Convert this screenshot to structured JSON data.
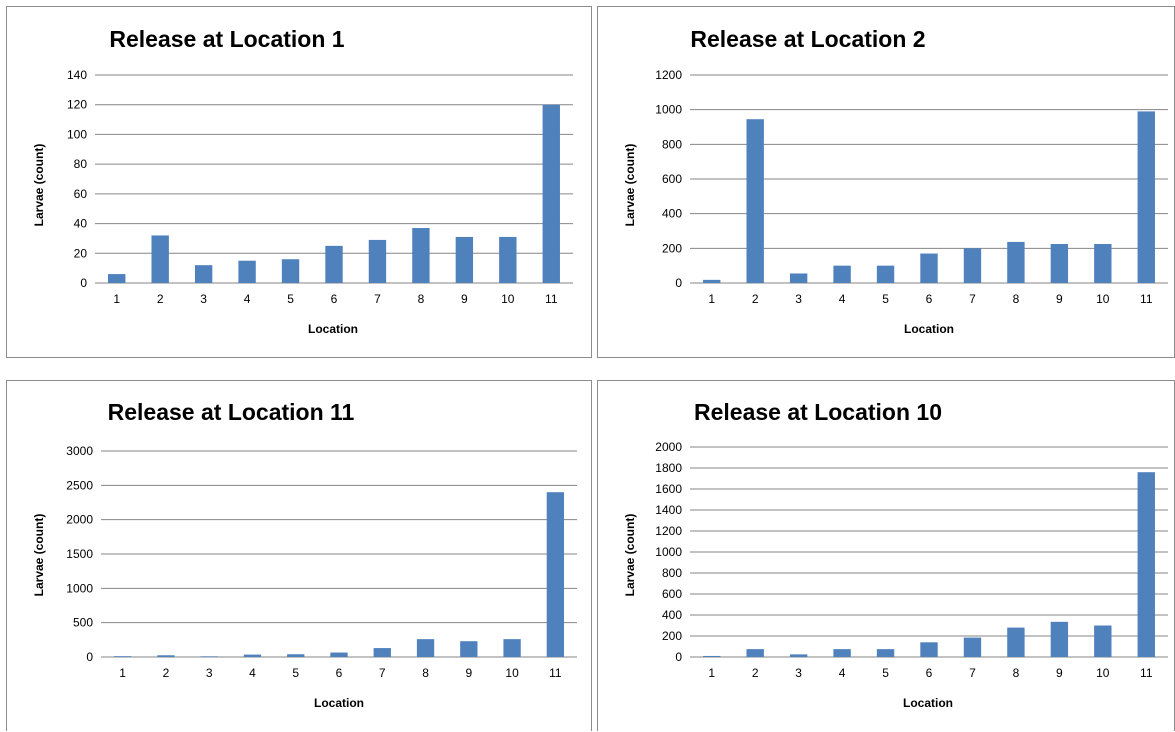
{
  "chart_data": [
    {
      "type": "bar",
      "title": "Release at Location 1",
      "xlabel": "Location",
      "ylabel": "Larvae (count)",
      "categories": [
        "1",
        "2",
        "3",
        "4",
        "5",
        "6",
        "7",
        "8",
        "9",
        "10",
        "11"
      ],
      "values": [
        6,
        32,
        12,
        15,
        16,
        25,
        29,
        37,
        31,
        31,
        120
      ],
      "ylim": [
        0,
        140
      ],
      "yticks": [
        "0",
        "20",
        "40",
        "60",
        "80",
        "100",
        "120",
        "140"
      ],
      "bar_color": "#4f81bd",
      "grid": true
    },
    {
      "type": "bar",
      "title": "Release at Location 2",
      "xlabel": "Location",
      "ylabel": "Larvae (count)",
      "categories": [
        "1",
        "2",
        "3",
        "4",
        "5",
        "6",
        "7",
        "8",
        "9",
        "10",
        "11"
      ],
      "values": [
        18,
        945,
        55,
        100,
        100,
        170,
        200,
        237,
        225,
        225,
        990
      ],
      "ylim": [
        0,
        1200
      ],
      "yticks": [
        "0",
        "200",
        "400",
        "600",
        "800",
        "1000",
        "1200"
      ],
      "bar_color": "#4f81bd",
      "grid": true
    },
    {
      "type": "bar",
      "title": "Release at Location 11",
      "xlabel": "Location",
      "ylabel": "Larvae (count)",
      "categories": [
        "1",
        "2",
        "3",
        "4",
        "5",
        "6",
        "7",
        "8",
        "9",
        "10",
        "11"
      ],
      "values": [
        12,
        25,
        10,
        35,
        40,
        65,
        130,
        260,
        230,
        260,
        2400
      ],
      "ylim": [
        0,
        3000
      ],
      "yticks": [
        "0",
        "500",
        "1000",
        "1500",
        "2000",
        "2500",
        "3000"
      ],
      "bar_color": "#4f81bd",
      "grid": true
    },
    {
      "type": "bar",
      "title": "Release at Location 10",
      "xlabel": "Location",
      "ylabel": "Larvae (count)",
      "categories": [
        "1",
        "2",
        "3",
        "4",
        "5",
        "6",
        "7",
        "8",
        "9",
        "10",
        "11"
      ],
      "values": [
        10,
        75,
        25,
        75,
        75,
        140,
        185,
        280,
        335,
        300,
        1760
      ],
      "ylim": [
        0,
        2000
      ],
      "yticks": [
        "0",
        "200",
        "400",
        "600",
        "800",
        "1000",
        "1200",
        "1400",
        "1600",
        "1800",
        "2000"
      ],
      "bar_color": "#4f81bd",
      "grid": true
    }
  ]
}
